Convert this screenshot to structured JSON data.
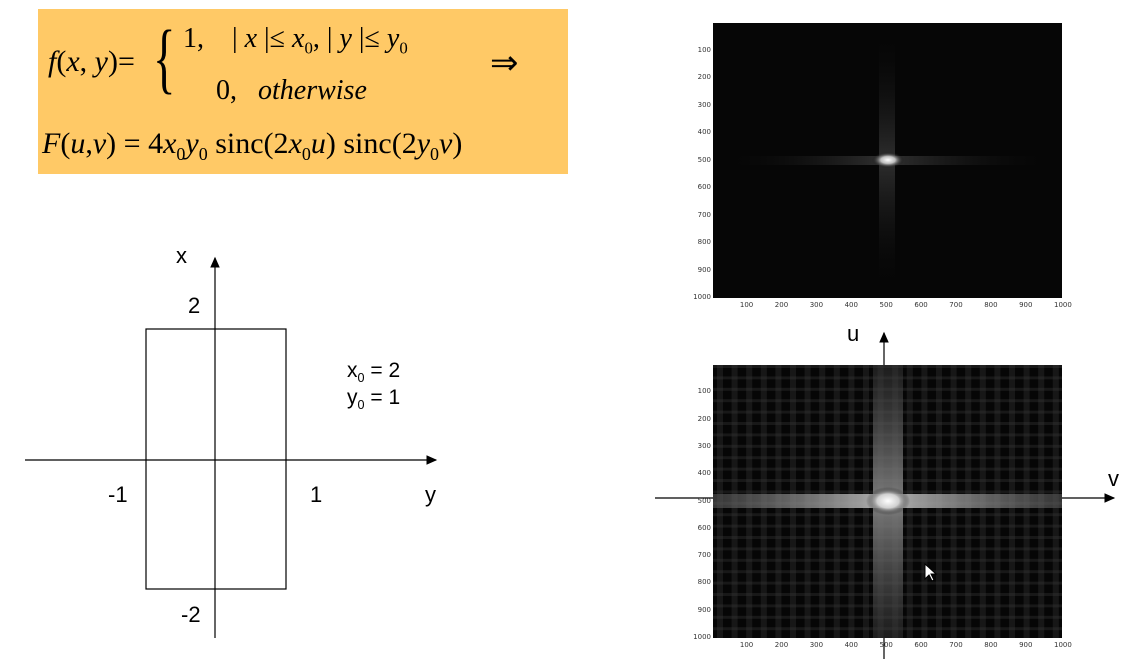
{
  "formula": {
    "lhs": "f(x,y)=",
    "case1": "1,   | x |≤ x0, | y |≤ y0",
    "case2": "0,   otherwise",
    "implies": "⇒",
    "rhs": "F(u,v) = 4x0y0 sinc(2x0u) sinc(2y0v)"
  },
  "diagram": {
    "x_axis_label": "x",
    "y_axis_label": "y",
    "tick_top": "2",
    "tick_bottom": "-2",
    "tick_left": "-1",
    "tick_right": "1",
    "param_x0": "x0 = 2",
    "param_y0": "y0 = 1"
  },
  "spectra": {
    "u_label": "u",
    "v_label": "v",
    "y_ticks": [
      "100",
      "200",
      "300",
      "400",
      "500",
      "600",
      "700",
      "800",
      "900",
      "1000"
    ],
    "x_ticks": [
      "100",
      "200",
      "300",
      "400",
      "500",
      "600",
      "700",
      "800",
      "900",
      "1000"
    ]
  },
  "colors": {
    "formula_bg": "#ffc966",
    "image_bg": "#060606"
  }
}
